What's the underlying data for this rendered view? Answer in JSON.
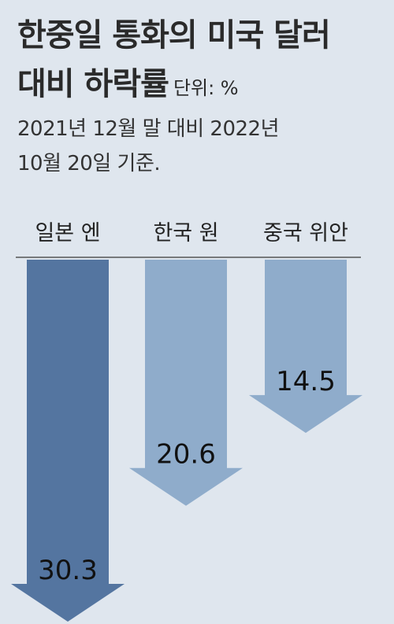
{
  "title_line1": "한중일 통화의 미국 달러",
  "title_line2": "대비 하락률",
  "unit": "단위: %",
  "subtitle_line1": "2021년 12월 말 대비 2022년",
  "subtitle_line2": "10월 20일 기준.",
  "chart_data": {
    "type": "bar",
    "title": "한중일 통화의 미국 달러 대비 하락률",
    "ylabel": "",
    "xlabel": "",
    "unit": "%",
    "categories": [
      "일본 엔",
      "한국 원",
      "중국 위안"
    ],
    "values": [
      30.3,
      20.6,
      14.5
    ],
    "colors": [
      "#5475a0",
      "#8faccb",
      "#8faccb"
    ],
    "ylim": [
      0,
      30.3
    ],
    "direction": "down",
    "grid": false
  }
}
